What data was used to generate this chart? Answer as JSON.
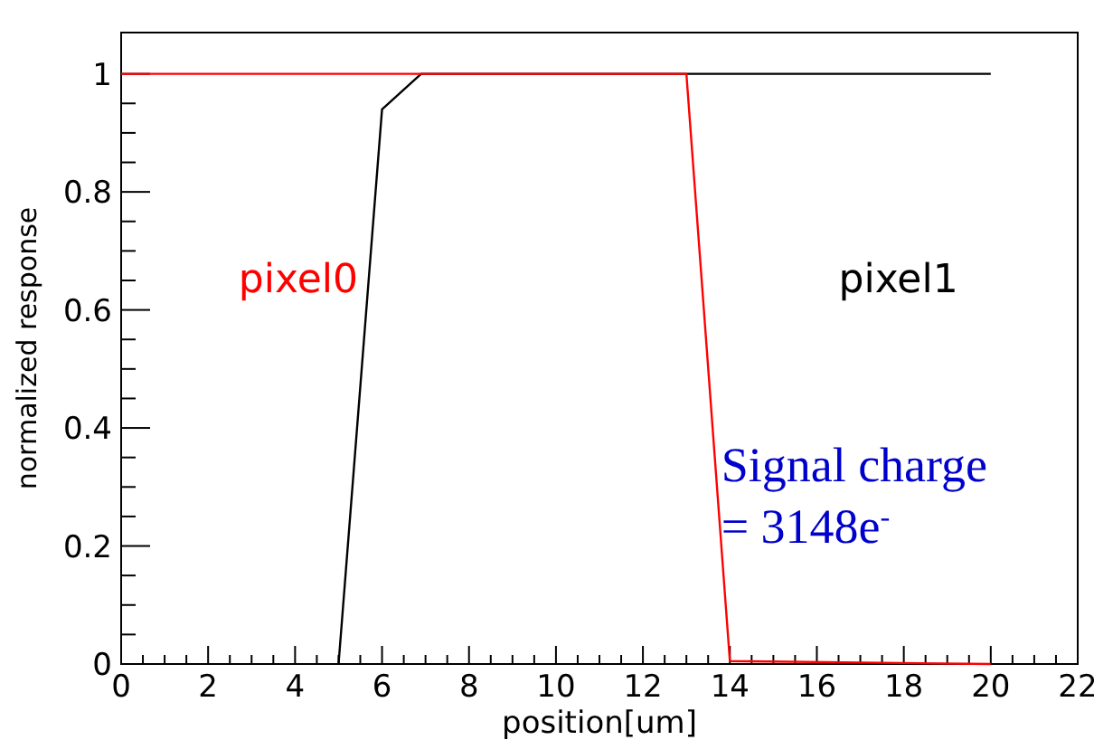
{
  "chart_data": {
    "type": "line",
    "xlabel": "position[um]",
    "ylabel": "normalized response",
    "xlim": [
      0,
      22
    ],
    "ylim": [
      0,
      1.07
    ],
    "xticks": [
      0,
      2,
      4,
      6,
      8,
      10,
      12,
      14,
      16,
      18,
      20,
      22
    ],
    "yticks": [
      0,
      0.2,
      0.4,
      0.6,
      0.8,
      1
    ],
    "series": [
      {
        "name": "pixel1",
        "color": "#000000",
        "x": [
          5,
          6,
          6.9,
          20
        ],
        "values": [
          0,
          0.94,
          1,
          1
        ]
      },
      {
        "name": "pixel0",
        "color": "#ff0000",
        "x": [
          0,
          13,
          14,
          20
        ],
        "values": [
          1,
          1,
          0.005,
          0
        ]
      }
    ],
    "annotations": [
      "Signal charge\n= 3148e$^{-}$"
    ],
    "grid": false
  }
}
